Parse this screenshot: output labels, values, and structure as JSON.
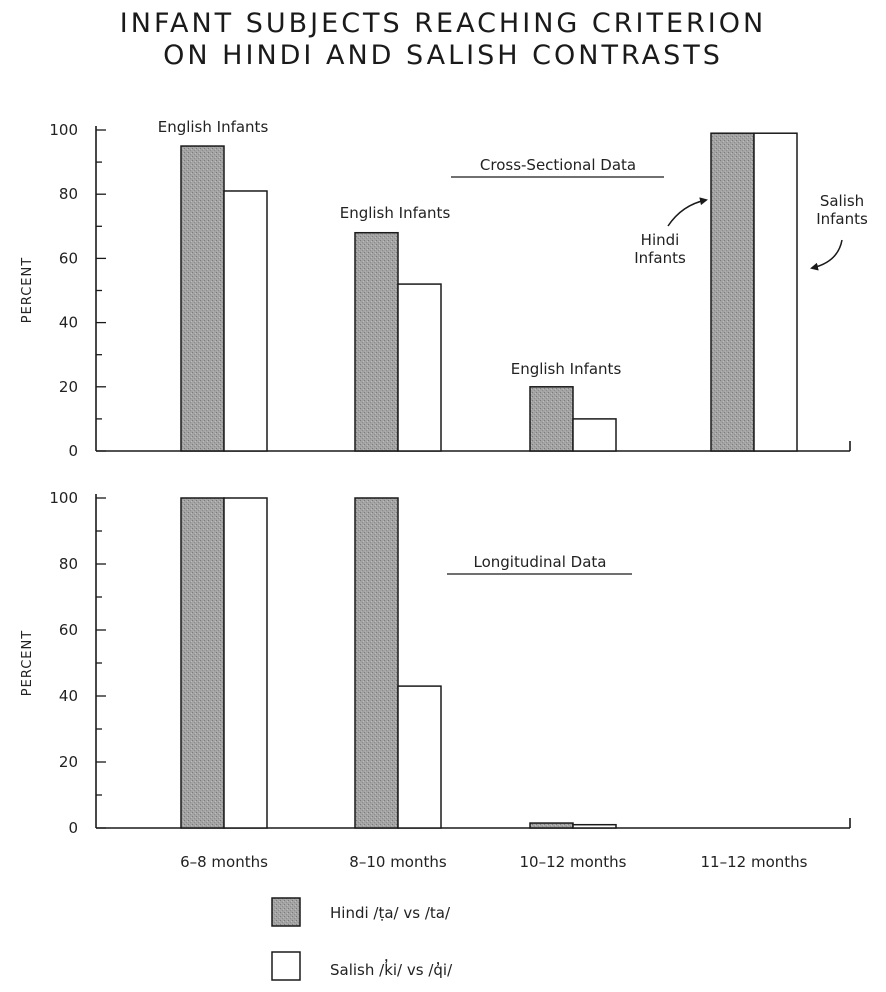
{
  "title_lines": [
    "INFANT SUBJECTS REACHING CRITERION",
    "ON HINDI AND SALISH CONTRASTS"
  ],
  "colors": {
    "hindi_fill": "#9a9a9a",
    "salish_fill": "#ffffff",
    "ink": "#1a1a1a"
  },
  "chart_data": [
    {
      "type": "bar",
      "title": "Cross-Sectional Data",
      "ylabel": "PERCENT",
      "ylim": [
        0,
        100
      ],
      "yticks": [
        "0",
        "20",
        "40",
        "60",
        "80",
        "100"
      ],
      "categories": [
        "6-8 months",
        "8-10 months",
        "10-12 months",
        "11-12 months"
      ],
      "series": [
        {
          "name": "Hindi /ṭa/ vs /ta/",
          "values": [
            95,
            68,
            20,
            99
          ]
        },
        {
          "name": "Salish /k̓i/ vs /q̓i/",
          "values": [
            81,
            52,
            10,
            99
          ]
        }
      ],
      "annotations": [
        "English Infants",
        "English Infants",
        "English Infants",
        "Hindi Infants",
        "Salish Infants"
      ]
    },
    {
      "type": "bar",
      "title": "Longitudinal Data",
      "ylabel": "PERCENT",
      "ylim": [
        0,
        100
      ],
      "yticks": [
        "0",
        "20",
        "40",
        "60",
        "80",
        "100"
      ],
      "categories": [
        "6-8 months",
        "8-10 months",
        "10-12 months",
        "11-12 months"
      ],
      "category_labels": [
        "6–8 months",
        "8–10 months",
        "10–12 months",
        "11–12 months"
      ],
      "series": [
        {
          "name": "Hindi /ṭa/ vs /ta/",
          "values": [
            100,
            100,
            1.5,
            0
          ]
        },
        {
          "name": "Salish /k̓i/ vs /q̓i/",
          "values": [
            100,
            43,
            1,
            0
          ]
        }
      ]
    }
  ],
  "legend": [
    {
      "label": "Hindi /ṭa/ vs /ta/",
      "fill": "#9a9a9a"
    },
    {
      "label": "Salish /k̓i/ vs /q̓i/",
      "fill": "#ffffff"
    }
  ]
}
